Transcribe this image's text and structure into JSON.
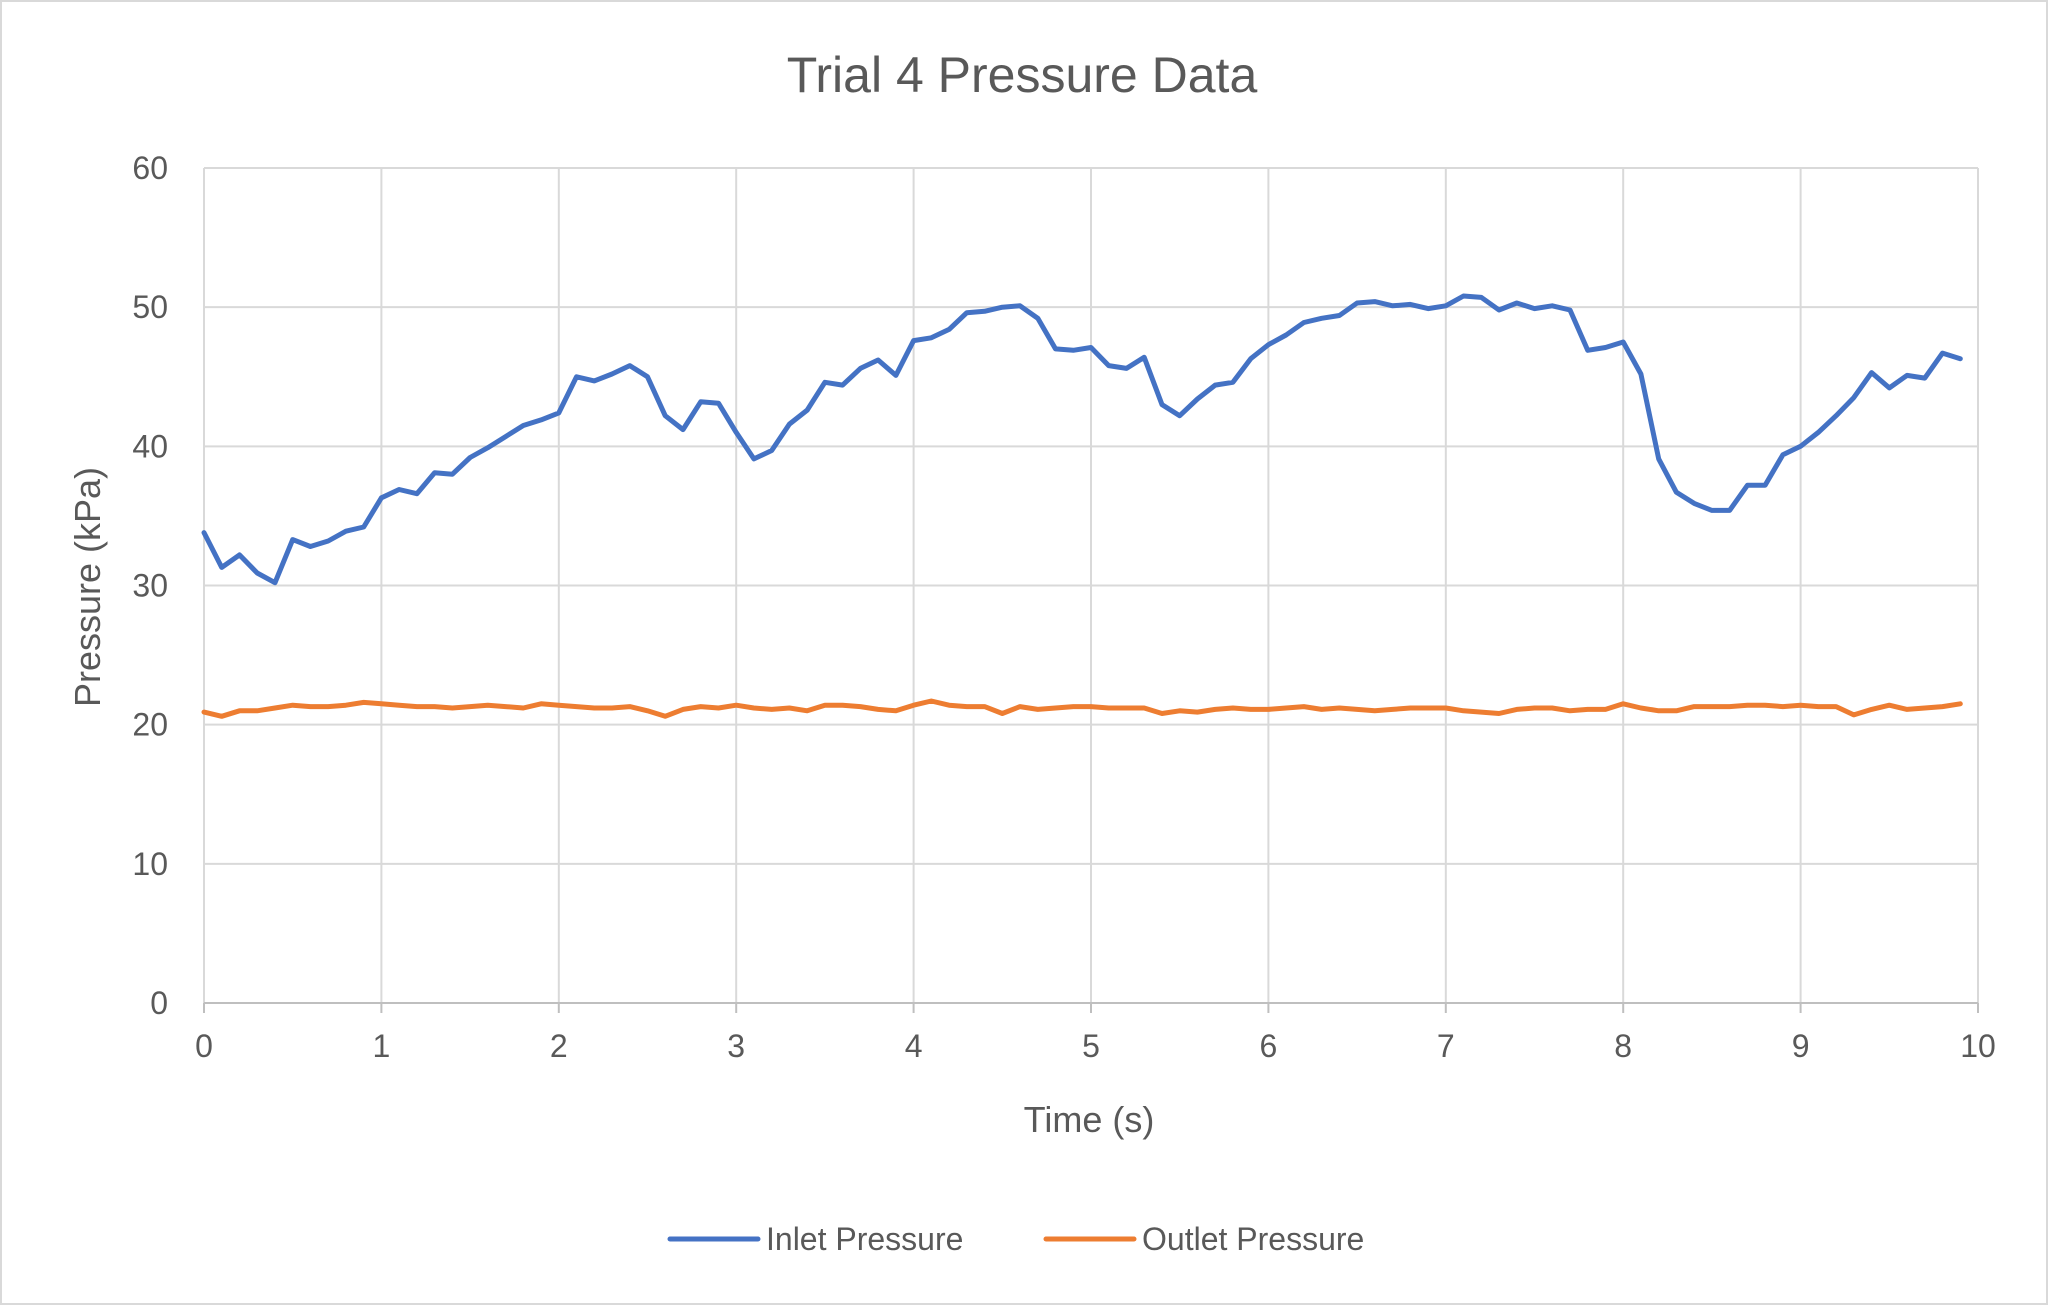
{
  "chart_data": {
    "type": "line",
    "title": "Trial 4 Pressure Data",
    "xlabel": "Time (s)",
    "ylabel": "Pressure (kPa)",
    "xlim": [
      0,
      10
    ],
    "ylim": [
      0,
      60
    ],
    "x_ticks": [
      0,
      1,
      2,
      3,
      4,
      5,
      6,
      7,
      8,
      9,
      10
    ],
    "y_ticks": [
      0,
      10,
      20,
      30,
      40,
      50,
      60
    ],
    "grid": true,
    "legend_position": "bottom",
    "x": [
      0,
      0.1,
      0.2,
      0.3,
      0.4,
      0.5,
      0.6,
      0.7,
      0.8,
      0.9,
      1.0,
      1.1,
      1.2,
      1.3,
      1.4,
      1.5,
      1.6,
      1.7,
      1.8,
      1.9,
      2.0,
      2.1,
      2.2,
      2.3,
      2.4,
      2.5,
      2.6,
      2.7,
      2.8,
      2.9,
      3.0,
      3.1,
      3.2,
      3.3,
      3.4,
      3.5,
      3.6,
      3.7,
      3.8,
      3.9,
      4.0,
      4.1,
      4.2,
      4.3,
      4.4,
      4.5,
      4.6,
      4.7,
      4.8,
      4.9,
      5.0,
      5.1,
      5.2,
      5.3,
      5.4,
      5.5,
      5.6,
      5.7,
      5.8,
      5.9,
      6.0,
      6.1,
      6.2,
      6.3,
      6.4,
      6.5,
      6.6,
      6.7,
      6.8,
      6.9,
      7.0,
      7.1,
      7.2,
      7.3,
      7.4,
      7.5,
      7.6,
      7.7,
      7.8,
      7.9,
      8.0,
      8.1,
      8.2,
      8.3,
      8.4,
      8.5,
      8.6,
      8.7,
      8.8,
      8.9,
      9.0,
      9.1,
      9.2,
      9.3,
      9.4,
      9.5,
      9.6,
      9.7,
      9.8,
      9.9
    ],
    "series": [
      {
        "name": "Inlet Pressure",
        "color": "#4472c4",
        "values": [
          33.8,
          31.3,
          32.2,
          30.9,
          30.2,
          33.3,
          32.8,
          33.2,
          33.9,
          34.2,
          36.3,
          36.9,
          36.6,
          38.1,
          38.0,
          39.2,
          39.9,
          40.7,
          41.5,
          41.9,
          42.4,
          45.0,
          44.7,
          45.2,
          45.8,
          45.0,
          42.2,
          41.2,
          43.2,
          43.1,
          41.0,
          39.1,
          39.7,
          41.6,
          42.6,
          44.6,
          44.4,
          45.6,
          46.2,
          45.1,
          47.6,
          47.8,
          48.4,
          49.6,
          49.7,
          50.0,
          50.1,
          49.2,
          47.0,
          46.9,
          47.1,
          45.8,
          45.6,
          46.4,
          43.0,
          42.2,
          43.4,
          44.4,
          44.6,
          46.3,
          47.3,
          48.0,
          48.9,
          49.2,
          49.4,
          50.3,
          50.4,
          50.1,
          50.2,
          49.9,
          50.1,
          50.8,
          50.7,
          49.8,
          50.3,
          49.9,
          50.1,
          49.8,
          46.9,
          47.1,
          47.5,
          45.2,
          39.1,
          36.7,
          35.9,
          35.4,
          35.4,
          37.2,
          37.2,
          39.4,
          40.0,
          41.0,
          42.2,
          43.5,
          45.3,
          44.2,
          45.1,
          44.9,
          46.7,
          46.3
        ]
      },
      {
        "name": "Outlet Pressure",
        "color": "#ed7d31",
        "values": [
          20.9,
          20.6,
          21.0,
          21.0,
          21.2,
          21.4,
          21.3,
          21.3,
          21.4,
          21.6,
          21.5,
          21.4,
          21.3,
          21.3,
          21.2,
          21.3,
          21.4,
          21.3,
          21.2,
          21.5,
          21.4,
          21.3,
          21.2,
          21.2,
          21.3,
          21.0,
          20.6,
          21.1,
          21.3,
          21.2,
          21.4,
          21.2,
          21.1,
          21.2,
          21.0,
          21.4,
          21.4,
          21.3,
          21.1,
          21.0,
          21.4,
          21.7,
          21.4,
          21.3,
          21.3,
          20.8,
          21.3,
          21.1,
          21.2,
          21.3,
          21.3,
          21.2,
          21.2,
          21.2,
          20.8,
          21.0,
          20.9,
          21.1,
          21.2,
          21.1,
          21.1,
          21.2,
          21.3,
          21.1,
          21.2,
          21.1,
          21.0,
          21.1,
          21.2,
          21.2,
          21.2,
          21.0,
          20.9,
          20.8,
          21.1,
          21.2,
          21.2,
          21.0,
          21.1,
          21.1,
          21.5,
          21.2,
          21.0,
          21.0,
          21.3,
          21.3,
          21.3,
          21.4,
          21.4,
          21.3,
          21.4,
          21.3,
          21.3,
          20.7,
          21.1,
          21.4,
          21.1,
          21.2,
          21.3,
          21.5
        ]
      }
    ]
  }
}
